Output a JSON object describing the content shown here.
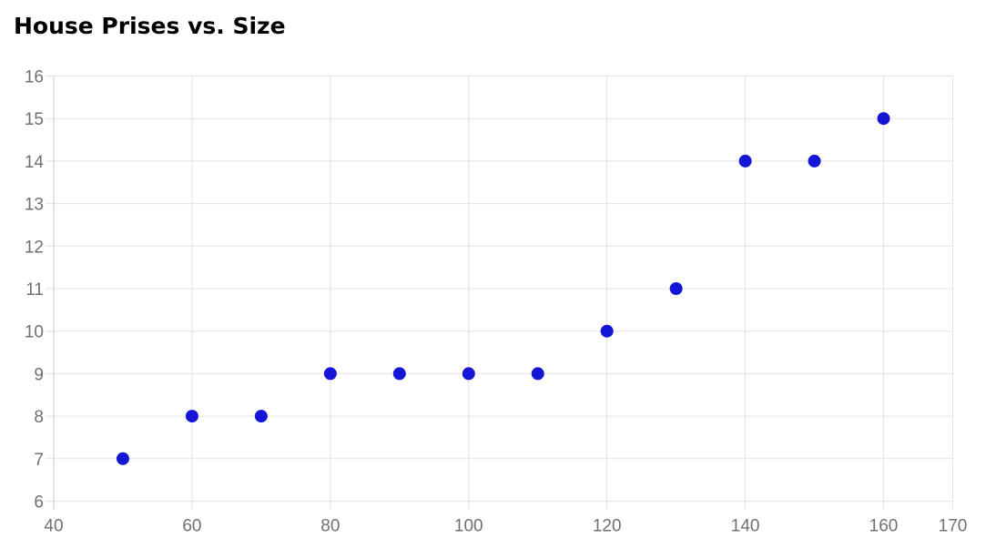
{
  "chart_data": {
    "type": "scatter",
    "title": "House Prises vs. Size",
    "xlabel": "",
    "ylabel": "",
    "series": [
      {
        "name": "House Prises vs. Size",
        "points": [
          {
            "x": 50,
            "y": 7
          },
          {
            "x": 60,
            "y": 8
          },
          {
            "x": 70,
            "y": 8
          },
          {
            "x": 80,
            "y": 9
          },
          {
            "x": 90,
            "y": 9
          },
          {
            "x": 100,
            "y": 9
          },
          {
            "x": 110,
            "y": 9
          },
          {
            "x": 120,
            "y": 10
          },
          {
            "x": 130,
            "y": 11
          },
          {
            "x": 140,
            "y": 14
          },
          {
            "x": 150,
            "y": 14
          },
          {
            "x": 160,
            "y": 15
          }
        ]
      }
    ],
    "xlim": [
      40,
      170
    ],
    "ylim": [
      6,
      16
    ],
    "x_ticks": [
      40,
      60,
      80,
      100,
      120,
      140,
      160,
      170
    ],
    "y_ticks": [
      6,
      7,
      8,
      9,
      10,
      11,
      12,
      13,
      14,
      15,
      16
    ],
    "grid": true,
    "legend": "none",
    "colors": {
      "point": "#1515d6",
      "gridline": "#e3e3e3",
      "axis_line": "#c7c7c7",
      "tick_label": "#707070",
      "title": "#000000"
    }
  }
}
